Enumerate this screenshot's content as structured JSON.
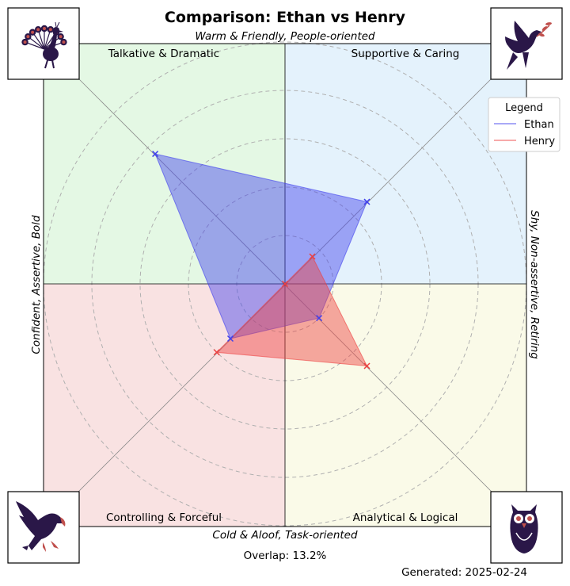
{
  "title": "Comparison: Ethan vs Henry",
  "axes": {
    "top": "Warm & Friendly, People-oriented",
    "bottom": "Cold & Aloof, Task-oriented",
    "left": "Confident, Assertive, Bold",
    "right": "Shy, Non-assertive, Retiring"
  },
  "quadrants": [
    {
      "label": "Talkative & Dramatic",
      "color": "#e4f8e4",
      "icon": "peacock-icon"
    },
    {
      "label": "Supportive & Caring",
      "color": "#e4f2fc",
      "icon": "dove-icon"
    },
    {
      "label": "Controlling & Forceful",
      "color": "#f9e2e2",
      "icon": "eagle-icon"
    },
    {
      "label": "Analytical & Logical",
      "color": "#fafae8",
      "icon": "owl-icon"
    }
  ],
  "legend": {
    "title": "Legend",
    "position": "upper-right"
  },
  "overlap_text": "Overlap: 13.2%",
  "generated_text": "Generated: 2025-02-24",
  "colors": {
    "ethan": "#4040ee",
    "henry": "#ee4040",
    "icon": "#2a1748",
    "accent": "#c0504d"
  },
  "chart_data": {
    "type": "radar",
    "directions": [
      "Talkative & Dramatic",
      "Supportive & Caring",
      "Analytical & Logical",
      "Controlling & Forceful"
    ],
    "rlim": [
      0,
      5
    ],
    "rings": [
      1,
      2,
      3,
      4,
      5
    ],
    "grid": true,
    "series": [
      {
        "name": "Ethan",
        "values": [
          3.8,
          2.4,
          1.0,
          1.6
        ]
      },
      {
        "name": "Henry",
        "values": [
          0.0,
          0.8,
          2.4,
          2.0
        ]
      }
    ]
  }
}
